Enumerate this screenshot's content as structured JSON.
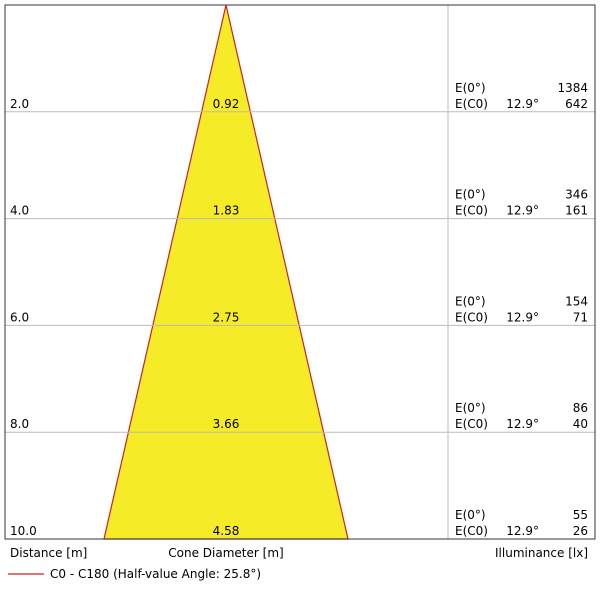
{
  "chart_data": {
    "type": "cone-diagram",
    "rows": [
      {
        "distance": "2.0",
        "diameter": "0.92",
        "e0_value": "1384",
        "ec0_value": "642"
      },
      {
        "distance": "4.0",
        "diameter": "1.83",
        "e0_value": "346",
        "ec0_value": "161"
      },
      {
        "distance": "6.0",
        "diameter": "2.75",
        "e0_value": "154",
        "ec0_value": "71"
      },
      {
        "distance": "8.0",
        "diameter": "3.66",
        "e0_value": "86",
        "ec0_value": "40"
      },
      {
        "distance": "10.0",
        "diameter": "4.58",
        "e0_value": "55",
        "ec0_value": "26"
      }
    ],
    "e0_label": "E(0°)",
    "ec0_label": "E(C0)",
    "half_angle_label": "12.9°",
    "distance_axis_label": "Distance [m]",
    "diameter_axis_label": "Cone Diameter [m]",
    "illuminance_axis_label": "Illuminance [lx]",
    "legend": "C0 - C180 (Half-value Angle: 25.8°)",
    "max_distance": 10.0,
    "max_diameter": 4.58,
    "colors": {
      "cone_fill": "#f5eb27",
      "cone_edge": "#cc2222",
      "grid": "#bbbbbb",
      "border": "#333333"
    }
  }
}
